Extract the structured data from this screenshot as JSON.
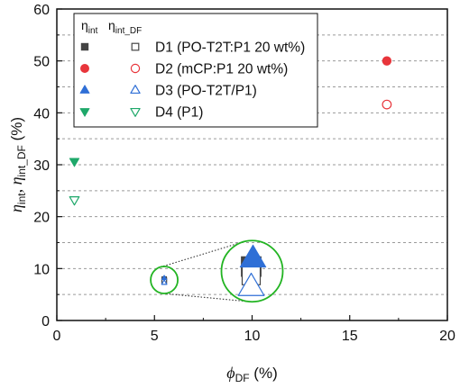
{
  "chart_data": {
    "type": "scatter",
    "xlabel": {
      "symbol": "ϕ",
      "subscript": "DF",
      "unit": "(%)"
    },
    "ylabel": {
      "symbol1": "η",
      "sub1": "int",
      "symbol2": "η",
      "sub2": "int_DF",
      "unit": "(%)"
    },
    "xlim": [
      0,
      20
    ],
    "ylim": [
      0,
      60
    ],
    "xticks": [
      "0",
      "5",
      "10",
      "15",
      "20"
    ],
    "yticks": [
      "0",
      "10",
      "20",
      "30",
      "40",
      "50",
      "60"
    ],
    "grid": "horizontal dashed at 5% steps",
    "legend": {
      "placement": "top-left",
      "head_filled": {
        "symbol": "η",
        "sub": "int"
      },
      "head_open": {
        "symbol": "η",
        "sub": "int_DF"
      },
      "entries": [
        {
          "label": "D1 (PO-T2T:P1 20 wt%)",
          "marker": "square",
          "color": "#444444"
        },
        {
          "label": "D2 (mCP:P1 20 wt%)",
          "marker": "circle",
          "color": "#e8353b"
        },
        {
          "label": "D3 (PO-T2T/P1)",
          "marker": "triangle-up",
          "color": "#2f6fd6"
        },
        {
          "label": "D4 (P1)",
          "marker": "triangle-down",
          "color": "#1ea86a"
        }
      ]
    },
    "series": [
      {
        "name": "D1",
        "marker": "square",
        "color": "#444444",
        "eta_int": {
          "x": 5.5,
          "y": 8.0
        },
        "eta_int_DF": {
          "x": 5.5,
          "y": 7.7
        }
      },
      {
        "name": "D2",
        "marker": "circle",
        "color": "#e8353b",
        "eta_int": {
          "x": 16.9,
          "y": 50.0
        },
        "eta_int_DF": {
          "x": 16.9,
          "y": 41.6
        }
      },
      {
        "name": "D3",
        "marker": "triangle-up",
        "color": "#2f6fd6",
        "eta_int": {
          "x": 5.5,
          "y": 8.2
        },
        "eta_int_DF": {
          "x": 5.5,
          "y": 7.3
        }
      },
      {
        "name": "D4",
        "marker": "triangle-down",
        "color": "#1ea86a",
        "eta_int": {
          "x": 0.9,
          "y": 30.6
        },
        "eta_int_DF": {
          "x": 0.9,
          "y": 23.2
        }
      }
    ],
    "zoom": {
      "circle_color": "#22b422",
      "source_center": {
        "x": 5.5,
        "y": 7.8
      },
      "magnified_center": {
        "x": 10.0,
        "y": 9.5
      }
    }
  }
}
